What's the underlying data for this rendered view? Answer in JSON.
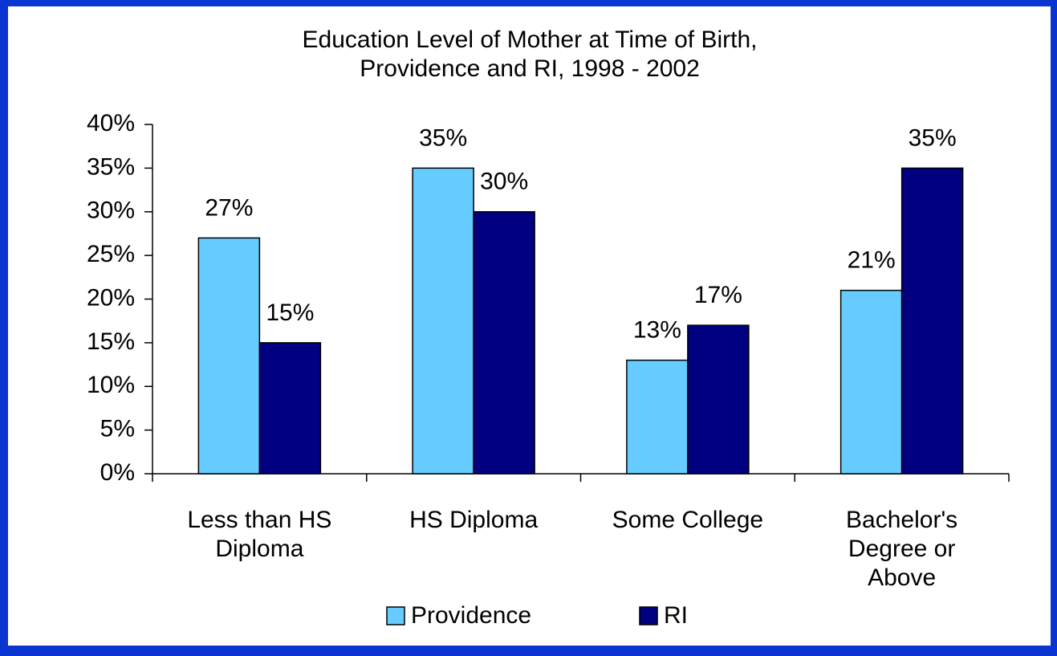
{
  "chart_data": {
    "type": "bar",
    "title": "Education Level of Mother at Time of Birth,\nProvidence and RI, 1998 - 2002",
    "categories": [
      "Less than HS\nDiploma",
      "HS Diploma",
      "Some College",
      "Bachelor's\nDegree or\nAbove"
    ],
    "series": [
      {
        "name": "Providence",
        "color": "#66ccff",
        "values": [
          27,
          35,
          13,
          21
        ],
        "value_labels": [
          "27%",
          "35%",
          "13%",
          "21%"
        ]
      },
      {
        "name": "RI",
        "color": "#000080",
        "values": [
          15,
          30,
          17,
          35
        ],
        "value_labels": [
          "15%",
          "30%",
          "17%",
          "35%"
        ]
      }
    ],
    "ylim": [
      0,
      40
    ],
    "yticks": [
      {
        "value": 0,
        "label": "0%"
      },
      {
        "value": 5,
        "label": "5%"
      },
      {
        "value": 10,
        "label": "10%"
      },
      {
        "value": 15,
        "label": "15%"
      },
      {
        "value": 20,
        "label": "20%"
      },
      {
        "value": 25,
        "label": "25%"
      },
      {
        "value": 30,
        "label": "30%"
      },
      {
        "value": 35,
        "label": "35%"
      },
      {
        "value": 40,
        "label": "40%"
      }
    ],
    "grid": false,
    "legend": "bottom"
  }
}
